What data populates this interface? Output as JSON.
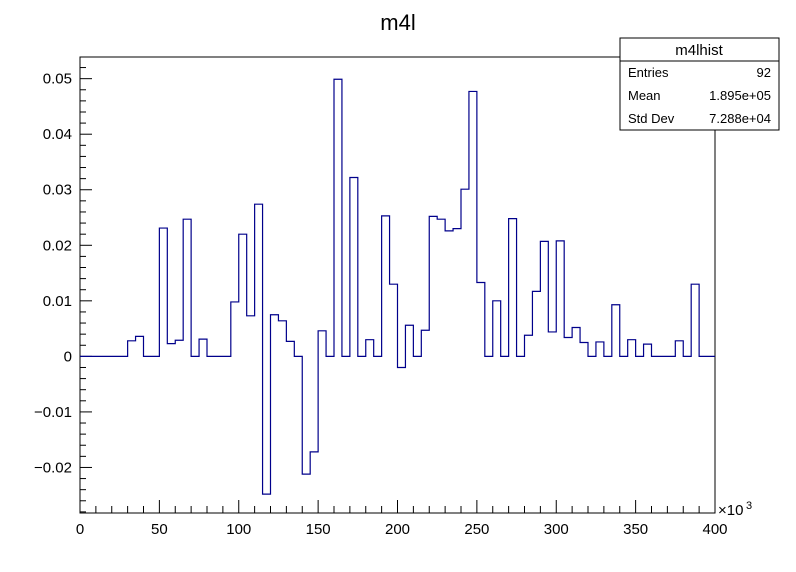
{
  "chart_data": {
    "type": "histogram",
    "title": "m4l",
    "xlabel": "",
    "ylabel": "",
    "x_multiplier": "×10",
    "x_multiplier_exp": "3",
    "xlim": [
      0,
      400
    ],
    "ylim": [
      -0.0282,
      0.0539
    ],
    "bin_width": 5,
    "line_color": "#00008b",
    "grid": false,
    "x_ticks": [
      0,
      50,
      100,
      150,
      200,
      250,
      300,
      350,
      400
    ],
    "x_tick_labels": [
      "0",
      "50",
      "100",
      "150",
      "200",
      "250",
      "300",
      "350",
      "400"
    ],
    "y_ticks": [
      -0.02,
      -0.01,
      0,
      0.01,
      0.02,
      0.03,
      0.04,
      0.05
    ],
    "y_tick_labels": [
      "−0.02",
      "−0.01",
      "0",
      "0.01",
      "0.02",
      "0.03",
      "0.04",
      "0.05"
    ],
    "bins": [
      {
        "x": 0,
        "y": 0
      },
      {
        "x": 5,
        "y": 0
      },
      {
        "x": 10,
        "y": 0
      },
      {
        "x": 15,
        "y": 0
      },
      {
        "x": 20,
        "y": 0
      },
      {
        "x": 25,
        "y": 0
      },
      {
        "x": 30,
        "y": 0.0028
      },
      {
        "x": 35,
        "y": 0.0036
      },
      {
        "x": 40,
        "y": 0
      },
      {
        "x": 45,
        "y": 0
      },
      {
        "x": 50,
        "y": 0.0231
      },
      {
        "x": 55,
        "y": 0.0023
      },
      {
        "x": 60,
        "y": 0.0029
      },
      {
        "x": 65,
        "y": 0.0247
      },
      {
        "x": 70,
        "y": 0
      },
      {
        "x": 75,
        "y": 0.0031
      },
      {
        "x": 80,
        "y": 0
      },
      {
        "x": 85,
        "y": 0
      },
      {
        "x": 90,
        "y": 0
      },
      {
        "x": 95,
        "y": 0.0098
      },
      {
        "x": 100,
        "y": 0.022
      },
      {
        "x": 105,
        "y": 0.0073
      },
      {
        "x": 110,
        "y": 0.0274
      },
      {
        "x": 115,
        "y": -0.0248
      },
      {
        "x": 120,
        "y": 0.0075
      },
      {
        "x": 125,
        "y": 0.0064
      },
      {
        "x": 130,
        "y": 0.0027
      },
      {
        "x": 135,
        "y": 0
      },
      {
        "x": 140,
        "y": -0.0212
      },
      {
        "x": 145,
        "y": -0.0172
      },
      {
        "x": 150,
        "y": 0.0046
      },
      {
        "x": 155,
        "y": 0
      },
      {
        "x": 160,
        "y": 0.0499
      },
      {
        "x": 165,
        "y": 0
      },
      {
        "x": 170,
        "y": 0.0322
      },
      {
        "x": 175,
        "y": 0
      },
      {
        "x": 180,
        "y": 0.003
      },
      {
        "x": 185,
        "y": 0
      },
      {
        "x": 190,
        "y": 0.0253
      },
      {
        "x": 195,
        "y": 0.013
      },
      {
        "x": 200,
        "y": -0.002
      },
      {
        "x": 205,
        "y": 0.0056
      },
      {
        "x": 210,
        "y": 0
      },
      {
        "x": 215,
        "y": 0.0047
      },
      {
        "x": 220,
        "y": 0.0252
      },
      {
        "x": 225,
        "y": 0.0247
      },
      {
        "x": 230,
        "y": 0.0226
      },
      {
        "x": 235,
        "y": 0.023
      },
      {
        "x": 240,
        "y": 0.0301
      },
      {
        "x": 245,
        "y": 0.0477
      },
      {
        "x": 250,
        "y": 0.0133
      },
      {
        "x": 255,
        "y": 0
      },
      {
        "x": 260,
        "y": 0.01
      },
      {
        "x": 265,
        "y": 0
      },
      {
        "x": 270,
        "y": 0.0248
      },
      {
        "x": 275,
        "y": 0
      },
      {
        "x": 280,
        "y": 0.0038
      },
      {
        "x": 285,
        "y": 0.0117
      },
      {
        "x": 290,
        "y": 0.0207
      },
      {
        "x": 295,
        "y": 0.0044
      },
      {
        "x": 300,
        "y": 0.0208
      },
      {
        "x": 305,
        "y": 0.0034
      },
      {
        "x": 310,
        "y": 0.0052
      },
      {
        "x": 315,
        "y": 0.0025
      },
      {
        "x": 320,
        "y": 0
      },
      {
        "x": 325,
        "y": 0.0026
      },
      {
        "x": 330,
        "y": 0
      },
      {
        "x": 335,
        "y": 0.0093
      },
      {
        "x": 340,
        "y": 0
      },
      {
        "x": 345,
        "y": 0.003
      },
      {
        "x": 350,
        "y": 0
      },
      {
        "x": 355,
        "y": 0.0022
      },
      {
        "x": 360,
        "y": 0
      },
      {
        "x": 365,
        "y": 0
      },
      {
        "x": 370,
        "y": 0
      },
      {
        "x": 375,
        "y": 0.0028
      },
      {
        "x": 380,
        "y": 0
      },
      {
        "x": 385,
        "y": 0.013
      },
      {
        "x": 390,
        "y": 0
      },
      {
        "x": 395,
        "y": 0
      }
    ],
    "stats_box": {
      "title": "m4lhist",
      "rows": [
        {
          "label": "Entries",
          "value": "92"
        },
        {
          "label": "Mean",
          "value": "1.895e+05"
        },
        {
          "label": "Std Dev",
          "value": "7.288e+04"
        }
      ]
    }
  }
}
